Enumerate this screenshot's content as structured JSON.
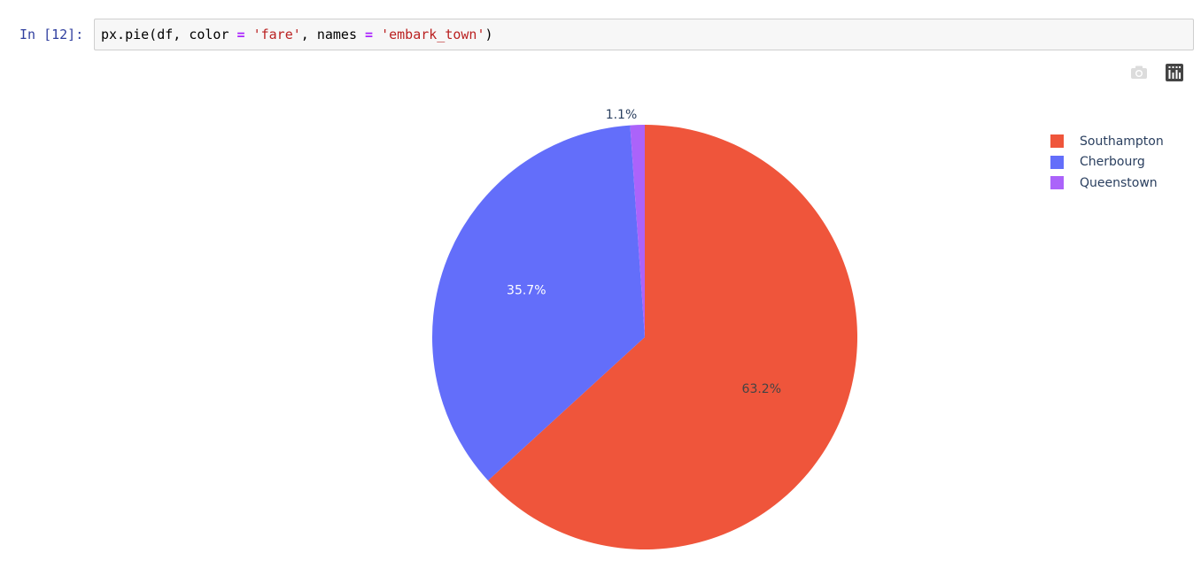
{
  "cell": {
    "prompt": "In [12]:",
    "code": {
      "part1": "px.pie(df, color ",
      "op1": "=",
      "part2": " ",
      "str1": "'fare'",
      "part3": ", names ",
      "op2": "=",
      "part4": " ",
      "str2": "'embark_town'",
      "part5": ")"
    }
  },
  "modebar": {
    "buttons": [
      {
        "name": "camera-icon",
        "title": "Download plot as a png"
      },
      {
        "name": "plotly-logo-icon",
        "title": "Produced with Plotly"
      }
    ]
  },
  "chart_data": {
    "type": "pie",
    "labels": [
      "Southampton",
      "Cherbourg",
      "Queenstown"
    ],
    "values": [
      63.2,
      35.7,
      1.1
    ],
    "value_labels": [
      "63.2%",
      "35.7%",
      "1.1%"
    ],
    "colors": [
      "#ef553b",
      "#636efa",
      "#ab63fa"
    ],
    "label_colors": [
      "#444444",
      "#ffffff",
      "#2a3f5f"
    ],
    "legend_position": "top-right",
    "direction": "clockwise",
    "start": "top"
  }
}
